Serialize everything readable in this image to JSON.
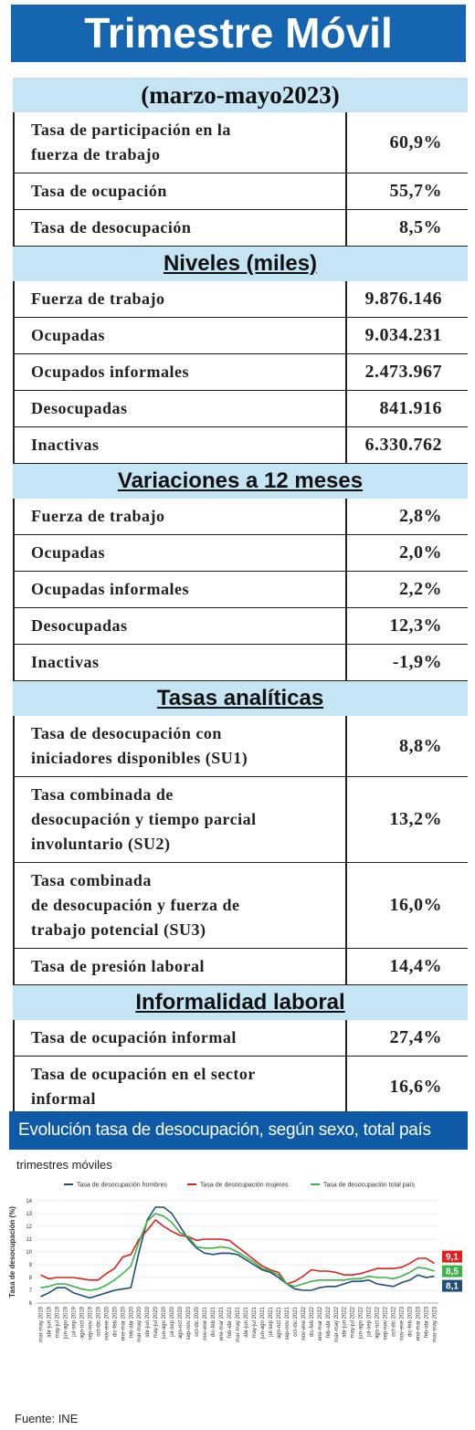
{
  "header": {
    "title": "Trimestre Móvil",
    "period": "(marzo-mayo2023)"
  },
  "sections": [
    {
      "rows": [
        {
          "label": "Tasa de participación en la\nfuerza de trabajo",
          "value": "60,9%"
        },
        {
          "label": "Tasa de ocupación",
          "value": "55,7%"
        },
        {
          "label": "Tasa de desocupación",
          "value": "8,5%"
        }
      ]
    },
    {
      "title": "Niveles  (miles)",
      "rows": [
        {
          "label": "Fuerza de trabajo",
          "value": "9.876.146"
        },
        {
          "label": "Ocupadas",
          "value": "9.034.231"
        },
        {
          "label": "Ocupados informales",
          "value": "2.473.967"
        },
        {
          "label": "Desocupadas",
          "value": "841.916"
        },
        {
          "label": "Inactivas",
          "value": "6.330.762"
        }
      ]
    },
    {
      "title": "Variaciones a 12 meses",
      "rows": [
        {
          "label": "Fuerza de trabajo",
          "value": "2,8%"
        },
        {
          "label": "Ocupadas",
          "value": "2,0%"
        },
        {
          "label": "Ocupadas informales",
          "value": "2,2%"
        },
        {
          "label": "Desocupadas",
          "value": "12,3%"
        },
        {
          "label": "Inactivas",
          "value": "-1,9%"
        }
      ]
    },
    {
      "title": "Tasas  analíticas",
      "rows": [
        {
          "label": "Tasa de desocupación con\niniciadores disponibles (SU1)",
          "value": "8,8%"
        },
        {
          "label": "Tasa combinada de\ndesocupación y tiempo parcial\ninvoluntario (SU2)",
          "value": "13,2%"
        },
        {
          "label": "Tasa combinada\nde desocupación y fuerza de\ntrabajo potencial (SU3)",
          "value": "16,0%"
        },
        {
          "label": "Tasa de presión laboral",
          "value": "14,4%"
        }
      ]
    },
    {
      "title": "Informalidad  laboral",
      "rows": [
        {
          "label": "Tasa de ocupación informal",
          "value": "27,4%"
        },
        {
          "label": "Tasa de ocupación en el sector\ninformal",
          "value": "16,6%"
        }
      ]
    }
  ],
  "chart_data": {
    "type": "line",
    "title": "Evolución tasa de desocupación, según sexo, total país",
    "subtitle": "trimestres móviles",
    "y_label": "Tasa de desocupación (%)",
    "source": "Fuente: INE",
    "categories": [
      "mar-may 2019",
      "abr-jun 2019",
      "may-jul 2019",
      "jun-ago 2019",
      "jul-sep 2019",
      "ago-oct 2019",
      "sep-nov 2019",
      "oct-dic 2019",
      "nov-ene 2020",
      "dic-feb 2020",
      "ene-mar 2020",
      "feb-abr 2020",
      "mar-may 2020",
      "abr-jun 2020",
      "may-jul 2020",
      "jun-ago 2020",
      "jul-sep 2020",
      "ago-oct 2020",
      "sep-nov 2020",
      "oct-dic 2020",
      "nov-ene 2021",
      "dic-feb 2021",
      "ene-mar 2021",
      "feb-abr 2021",
      "mar-may 2021",
      "abr-jun 2021",
      "may-jul 2021",
      "jun-ago 2021",
      "jul-sep 2021",
      "ago-oct 2021",
      "sep-nov 2021",
      "oct-dic 2021",
      "nov-ene 2022",
      "dic-feb 2022",
      "ene-mar 2022",
      "feb-abr 2022",
      "mar-may 2022",
      "abr-jun 2022",
      "may-jul 2022",
      "jun-ago 2022",
      "jul-sep 2022",
      "ago-oct 2022",
      "sep-nov 2022",
      "oct-dic 2022",
      "nov-ene 2023",
      "dic-feb 2023",
      "ene-mar 2023",
      "feb-abr 2023",
      "mar-may 2023"
    ],
    "series": [
      {
        "name": "Tasa de desocupación hombres",
        "color": "#1f4e79",
        "values": [
          6.5,
          6.8,
          7.2,
          7.2,
          6.8,
          6.6,
          6.4,
          6.6,
          6.8,
          7.0,
          7.1,
          7.2,
          10.0,
          12.5,
          13.5,
          13.5,
          13.0,
          12.0,
          11.0,
          10.3,
          9.9,
          9.8,
          9.9,
          9.9,
          9.8,
          9.4,
          9.0,
          8.6,
          8.4,
          8.0,
          7.5,
          7.1,
          7.0,
          7.0,
          7.2,
          7.3,
          7.3,
          7.5,
          7.7,
          7.7,
          7.8,
          7.5,
          7.4,
          7.3,
          7.6,
          7.8,
          8.2,
          8.0,
          8.1
        ],
        "value_labels": [
          null,
          null,
          null,
          null,
          null,
          null,
          null,
          null,
          null,
          null,
          null,
          null,
          null,
          null,
          null,
          null,
          null,
          null,
          null,
          null,
          null,
          null,
          null,
          null,
          null,
          null,
          null,
          null,
          null,
          null,
          null,
          null,
          null,
          null,
          null,
          null,
          null,
          null,
          null,
          null,
          null,
          null,
          null,
          null,
          null,
          null,
          null,
          null,
          "8,1"
        ]
      },
      {
        "name": "Tasa de desocupación mujeres",
        "color": "#e02020",
        "values": [
          8.2,
          7.9,
          8.0,
          8.0,
          8.0,
          7.9,
          7.8,
          7.8,
          8.3,
          8.7,
          9.6,
          9.8,
          11.0,
          11.7,
          12.5,
          12.0,
          11.6,
          11.3,
          11.2,
          10.9,
          11.0,
          11.0,
          11.0,
          10.9,
          10.4,
          9.9,
          9.4,
          8.9,
          8.6,
          8.4,
          7.5,
          7.7,
          8.1,
          8.6,
          8.5,
          8.5,
          8.4,
          8.2,
          8.2,
          8.3,
          8.5,
          8.7,
          8.7,
          8.7,
          8.8,
          9.1,
          9.5,
          9.5,
          9.1
        ],
        "value_labels": [
          null,
          null,
          null,
          null,
          null,
          null,
          null,
          null,
          null,
          null,
          null,
          null,
          null,
          null,
          null,
          null,
          null,
          null,
          null,
          null,
          null,
          null,
          null,
          null,
          null,
          null,
          null,
          null,
          null,
          null,
          null,
          null,
          null,
          null,
          null,
          null,
          null,
          null,
          null,
          null,
          null,
          null,
          null,
          null,
          null,
          null,
          null,
          null,
          "9,1"
        ]
      },
      {
        "name": "Tasa de desocupación total país",
        "color": "#3cb34a",
        "values": [
          7.2,
          7.3,
          7.5,
          7.5,
          7.3,
          7.1,
          7.0,
          7.1,
          7.4,
          7.8,
          8.3,
          8.9,
          10.8,
          12.4,
          13.0,
          12.8,
          12.3,
          11.5,
          11.2,
          10.4,
          10.3,
          10.3,
          10.4,
          10.3,
          10.0,
          9.6,
          9.2,
          8.7,
          8.5,
          8.2,
          7.5,
          7.3,
          7.5,
          7.7,
          7.8,
          7.8,
          7.8,
          7.8,
          7.9,
          7.9,
          8.1,
          8.0,
          8.0,
          7.9,
          8.1,
          8.4,
          8.8,
          8.7,
          8.5
        ],
        "value_labels": [
          null,
          null,
          null,
          null,
          null,
          null,
          null,
          null,
          null,
          null,
          null,
          null,
          null,
          null,
          null,
          null,
          null,
          null,
          null,
          null,
          null,
          null,
          null,
          null,
          null,
          null,
          null,
          null,
          null,
          null,
          null,
          null,
          null,
          null,
          null,
          null,
          null,
          null,
          null,
          null,
          null,
          null,
          null,
          null,
          null,
          null,
          null,
          null,
          "8,5"
        ]
      }
    ],
    "ylim": [
      6,
      14
    ],
    "yticks": [
      6,
      7,
      8,
      9,
      10,
      11,
      12,
      13,
      14
    ],
    "grid": true,
    "legend": "top"
  }
}
